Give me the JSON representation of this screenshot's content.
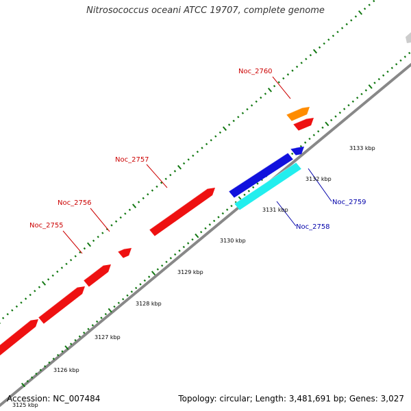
{
  "title": "Nitrosococcus oceani ATCC 19707, complete genome",
  "footer": {
    "accession": "Accession: NC_007484",
    "summary": "Topology: circular; Length: 3,481,691 bp; Genes: 3,027"
  },
  "colors": {
    "forward_gene": "#ee1111",
    "reverse_gene": "#1111dd",
    "reverse_alt_gene": "#22eeee",
    "orange_gene": "#ff8c00",
    "backbone": "#888888",
    "tick": "#117711",
    "label_line_red": "#cc0000",
    "label_line_blue": "#0000aa"
  },
  "scale_labels": [
    "3125 kbp",
    "3126 kbp",
    "3127 kbp",
    "3128 kbp",
    "3129 kbp",
    "3130 kbp",
    "3131 kbp",
    "3132 kbp",
    "3133 kbp"
  ],
  "gene_labels": [
    {
      "id": "noc2755",
      "text": "Noc_2755",
      "strand": "forward"
    },
    {
      "id": "noc2756",
      "text": "Noc_2756",
      "strand": "forward"
    },
    {
      "id": "noc2757",
      "text": "Noc_2757",
      "strand": "forward"
    },
    {
      "id": "noc2760",
      "text": "Noc_2760",
      "strand": "forward"
    },
    {
      "id": "noc2759",
      "text": "Noc_2759",
      "strand": "reverse"
    },
    {
      "id": "noc2758",
      "text": "Noc_2758",
      "strand": "reverse"
    }
  ]
}
